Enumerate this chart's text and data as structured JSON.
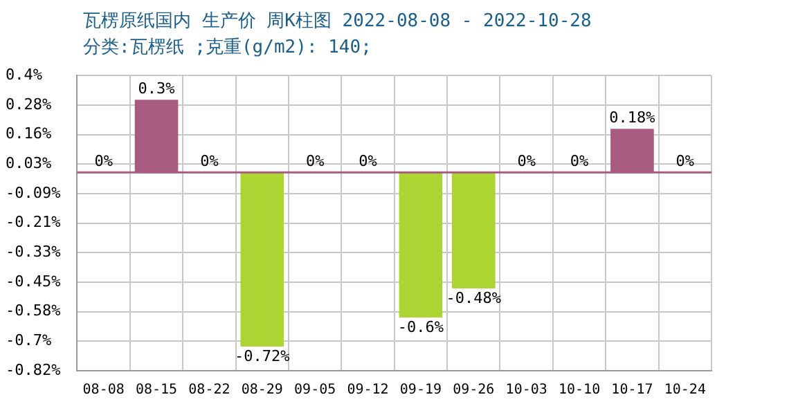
{
  "chart_data": {
    "type": "bar",
    "title": "瓦楞原纸国内 生产价 周K柱图 2022-08-08 - 2022-10-28",
    "subtitle": "分类:瓦楞纸 ;克重(g/m2): 140;",
    "categories": [
      "08-08",
      "08-15",
      "08-22",
      "08-29",
      "09-05",
      "09-12",
      "09-19",
      "09-26",
      "10-03",
      "10-10",
      "10-17",
      "10-24"
    ],
    "values": [
      0,
      0.3,
      0,
      -0.72,
      0,
      0,
      -0.6,
      -0.48,
      0,
      0,
      0.18,
      0
    ],
    "colors": [
      "#a85a80",
      "#a85a80",
      "#a85a80",
      "#acd432",
      "#a85a80",
      "#a85a80",
      "#acd432",
      "#acd432",
      "#a85a80",
      "#a85a80",
      "#a85a80",
      "#a85a80"
    ],
    "value_labels": [
      "0%",
      "0.3%",
      "0%",
      "-0.72%",
      "0%",
      "0%",
      "-0.6%",
      "-0.48%",
      "0%",
      "0%",
      "0.18%",
      "0%"
    ],
    "ylim": [
      -0.82,
      0.4
    ],
    "yticks": [
      {
        "value": 0.4,
        "label": "0.4%"
      },
      {
        "value": 0.278,
        "label": "0.28%"
      },
      {
        "value": 0.156,
        "label": "0.16%"
      },
      {
        "value": 0.034,
        "label": "0.03%"
      },
      {
        "value": -0.088,
        "label": "-0.09%"
      },
      {
        "value": -0.21,
        "label": "-0.21%"
      },
      {
        "value": -0.332,
        "label": "-0.33%"
      },
      {
        "value": -0.454,
        "label": "-0.45%"
      },
      {
        "value": -0.576,
        "label": "-0.58%"
      },
      {
        "value": -0.698,
        "label": "-0.7%"
      },
      {
        "value": -0.82,
        "label": "-0.82%"
      }
    ],
    "ref_lines": [
      {
        "axis": "y",
        "value": 0,
        "color": "#a85a80"
      }
    ],
    "grid": true,
    "legend": false
  }
}
